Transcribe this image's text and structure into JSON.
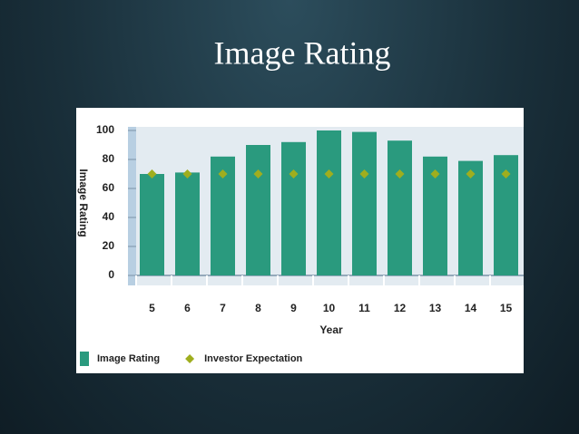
{
  "chart_data": {
    "type": "bar",
    "title": "Image Rating",
    "categories": [
      "5",
      "6",
      "7",
      "8",
      "9",
      "10",
      "11",
      "12",
      "13",
      "14",
      "15"
    ],
    "series": [
      {
        "name": "Image Rating",
        "color": "#2a9a7e",
        "values": [
          70,
          71,
          82,
          90,
          92,
          100,
          99,
          93,
          82,
          79,
          83
        ]
      },
      {
        "name": "Investor Expectation",
        "color": "#9fae1e",
        "marker": "diamond",
        "values": [
          70,
          70,
          70,
          70,
          70,
          70,
          70,
          70,
          70,
          70,
          70
        ]
      }
    ],
    "xlabel": "Year",
    "ylabel": "Image Rating",
    "ylim": [
      0,
      100
    ],
    "yticks": [
      0,
      20,
      40,
      60,
      80,
      100
    ],
    "legend": "bottom-left"
  }
}
